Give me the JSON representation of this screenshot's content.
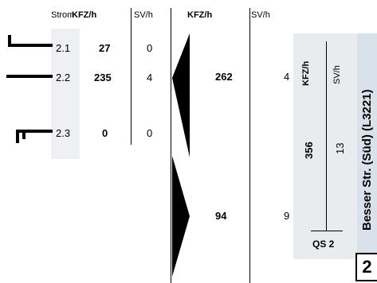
{
  "header": {
    "strom": "Strom",
    "kfz_h": "KFZ/h",
    "sv_h": "SV/h",
    "kfz_h_total": "KFZ/h",
    "sv_h_total": "SV/h"
  },
  "streams": [
    {
      "id": "2.1",
      "kfz": "27",
      "sv": "0",
      "icon": "left-turn-arrow-icon"
    },
    {
      "id": "2.2",
      "kfz": "235",
      "sv": "4",
      "icon": "straight-arrow-icon"
    },
    {
      "id": "2.3",
      "kfz": "0",
      "sv": "0",
      "icon": "u-turn-arrow-icon"
    }
  ],
  "totals": {
    "inbound_kfz": "262",
    "inbound_sv": "4",
    "outbound_kfz": "94",
    "outbound_sv": "9"
  },
  "cross_section": {
    "kfz_label": "KFZ/h",
    "sv_label": "SV/h",
    "kfz": "356",
    "sv": "13",
    "street_name": "Besser Str. (Süd) (L3221)",
    "qs_label": "QS 2",
    "qs_number": "2"
  },
  "colors": {
    "background": "#ffffff",
    "panel": "#e9ecef",
    "title_band": "#d9e1ea",
    "ink": "#000000"
  }
}
